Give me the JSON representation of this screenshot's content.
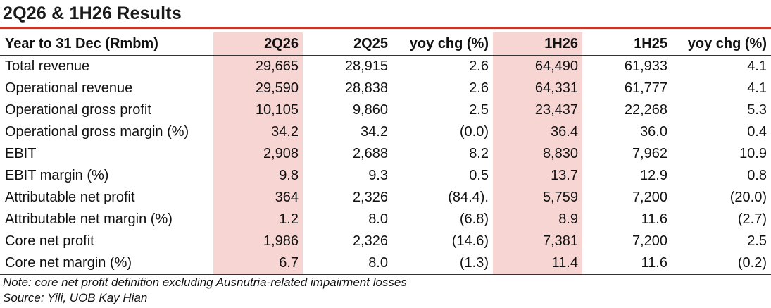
{
  "title": "2Q26 & 1H26 Results",
  "table": {
    "headers": [
      "Year to 31 Dec (Rmbm)",
      "2Q26",
      "2Q25",
      "yoy chg (%)",
      "1H26",
      "1H25",
      "yoy chg (%)"
    ],
    "highlight_color": "#f6d5d3",
    "rows": [
      [
        "Total revenue",
        "29,665",
        "28,915",
        "2.6",
        "64,490",
        "61,933",
        "4.1"
      ],
      [
        "Operational revenue",
        "29,590",
        "28,838",
        "2.6",
        "64,331",
        "61,777",
        "4.1"
      ],
      [
        "Operational gross profit",
        "10,105",
        "9,860",
        "2.5",
        "23,437",
        "22,268",
        "5.3"
      ],
      [
        "Operational gross margin (%)",
        "34.2",
        "34.2",
        "(0.0)",
        "36.4",
        "36.0",
        "0.4"
      ],
      [
        "EBIT",
        "2,908",
        "2,688",
        "8.2",
        "8,830",
        "7,962",
        "10.9"
      ],
      [
        "EBIT margin (%)",
        "9.8",
        "9.3",
        "0.5",
        "13.7",
        "12.9",
        "0.8"
      ],
      [
        "Attributable net profit",
        "364",
        "2,326",
        "(84.4).",
        "5,759",
        "7,200",
        "(20.0)"
      ],
      [
        "Attributable net margin (%)",
        "1.2",
        "8.0",
        "(6.8)",
        "8.9",
        "11.6",
        "(2.7)"
      ],
      [
        "Core net profit",
        "1,986",
        "2,326",
        "(14.6)",
        "7,381",
        "7,200",
        "2.5"
      ],
      [
        "Core net margin (%)",
        "6.7",
        "8.0",
        "(1.3)",
        "11.4",
        "11.6",
        "(0.2)"
      ]
    ]
  },
  "notes": {
    "note": "Note: core net profit definition excluding Ausnutria-related impairment losses",
    "source": "Source: Yili, UOB Kay Hian"
  }
}
